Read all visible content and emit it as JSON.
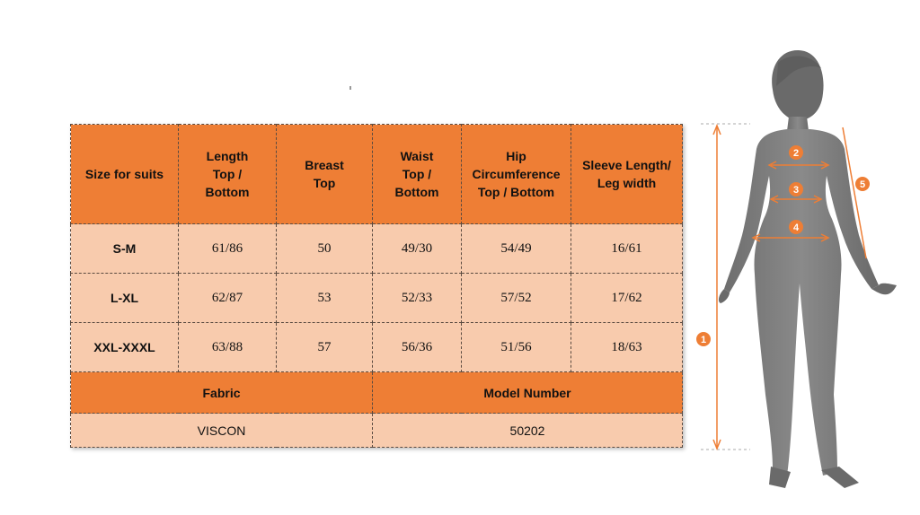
{
  "table": {
    "headers": [
      "Size for suits",
      "Length\nTop /\nBottom",
      "Breast\nTop",
      "Waist\nTop /\nBottom",
      "Hip\nCircumference\nTop / Bottom",
      "Sleeve Length/\nLeg width"
    ],
    "rows": [
      {
        "size": "S-M",
        "length": "61/86",
        "breast": "50",
        "waist": "49/30",
        "hip": "54/49",
        "sleeve": "16/61"
      },
      {
        "size": "L-XL",
        "length": "62/87",
        "breast": "53",
        "waist": "52/33",
        "hip": "57/52",
        "sleeve": "17/62"
      },
      {
        "size": "XXL-XXXL",
        "length": "63/88",
        "breast": "57",
        "waist": "56/36",
        "hip": "51/56",
        "sleeve": "18/63"
      }
    ],
    "fabric_label": "Fabric",
    "model_label": "Model Number",
    "fabric_value": "VISCON",
    "model_value": "50202"
  },
  "figure": {
    "icon": "body-measurement-silhouette-icon",
    "markers": [
      "1",
      "2",
      "3",
      "4",
      "5"
    ],
    "colors": {
      "accent": "#ee7e35",
      "silhouette": "#7a7a7a",
      "header": "#ee7e35",
      "cell": "#f8cbad"
    }
  }
}
